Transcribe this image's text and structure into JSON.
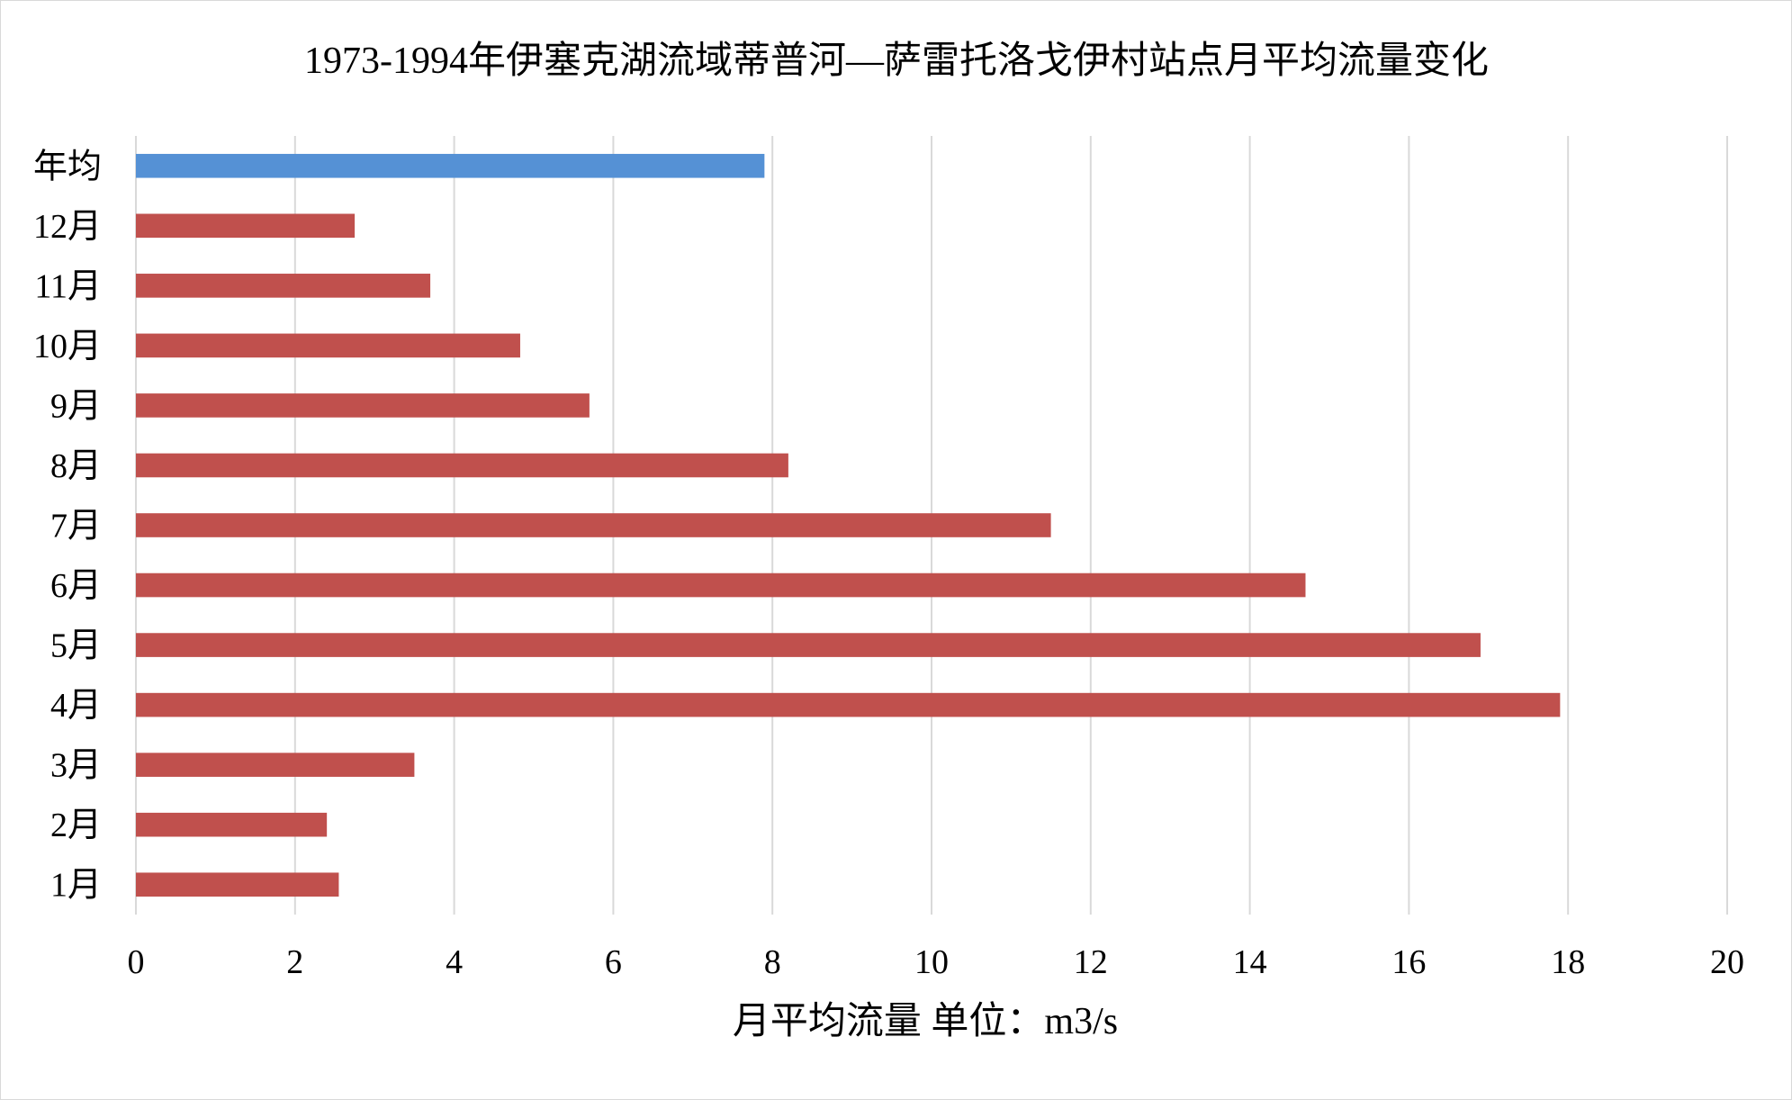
{
  "chart_data": {
    "type": "bar",
    "orientation": "horizontal",
    "title": "1973-1994年伊塞克湖流域蒂普河—萨雷托洛戈伊村站点月平均流量变化",
    "xlabel": "月平均流量 单位：m3/s",
    "ylabel": "",
    "xlim": [
      0,
      20
    ],
    "x_ticks": [
      "0",
      "2",
      "4",
      "6",
      "8",
      "10",
      "12",
      "14",
      "16",
      "18",
      "20"
    ],
    "grid": "vertical",
    "legend": "none",
    "categories": [
      "年均",
      "12月",
      "11月",
      "10月",
      "9月",
      "8月",
      "7月",
      "6月",
      "5月",
      "4月",
      "3月",
      "2月",
      "1月"
    ],
    "values": [
      7.9,
      2.75,
      3.7,
      4.83,
      5.7,
      8.2,
      11.5,
      14.7,
      16.9,
      17.9,
      3.5,
      2.4,
      2.55
    ],
    "colors": [
      "#5591d5",
      "#c0504d",
      "#c0504d",
      "#c0504d",
      "#c0504d",
      "#c0504d",
      "#c0504d",
      "#c0504d",
      "#c0504d",
      "#c0504d",
      "#c0504d",
      "#c0504d",
      "#c0504d"
    ]
  }
}
